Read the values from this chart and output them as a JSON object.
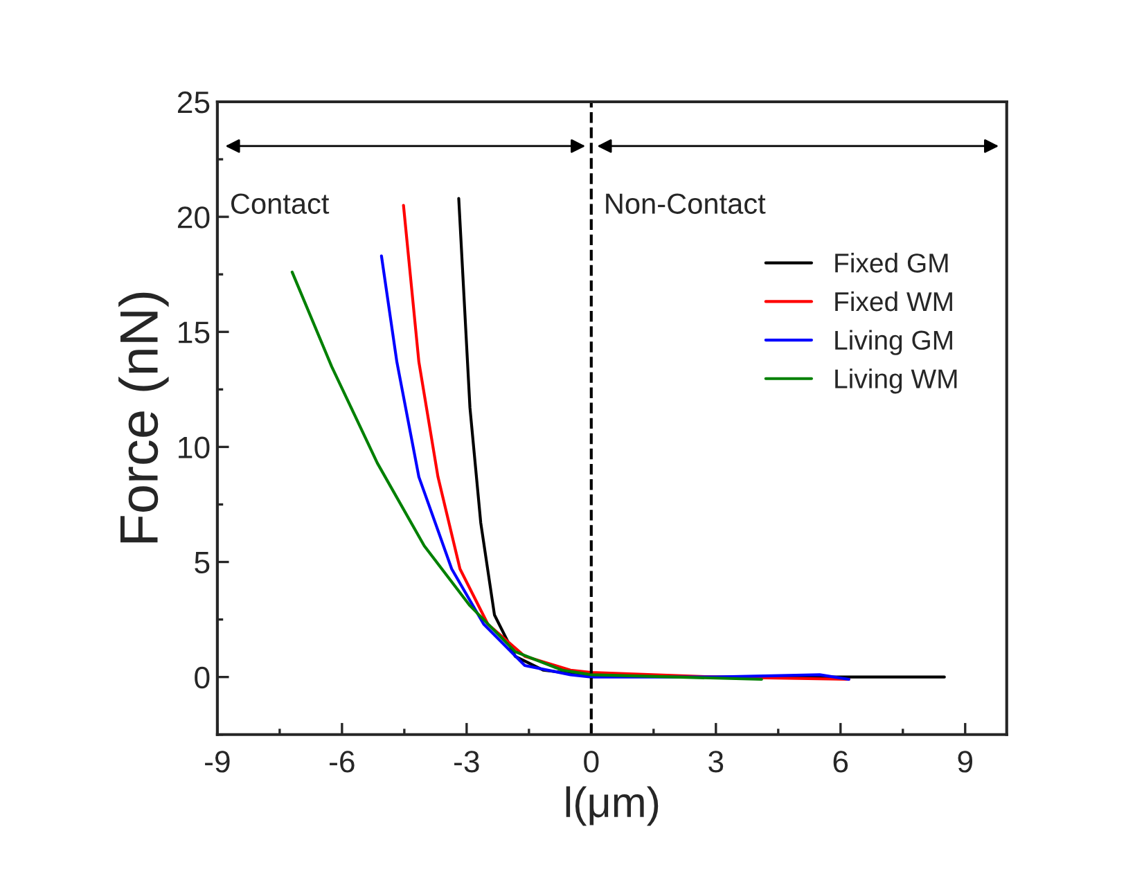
{
  "chart_data": {
    "type": "line",
    "xlabel": "l(μm)",
    "ylabel": "Force (nN)",
    "xlim": [
      -9,
      10
    ],
    "ylim": [
      -2.5,
      25
    ],
    "xticks": [
      -9,
      -6,
      -3,
      0,
      3,
      6,
      9
    ],
    "yticks": [
      0,
      5,
      10,
      15,
      20,
      25
    ],
    "grid": false,
    "legend": "right",
    "marker": "none",
    "line_style": "solid",
    "annotations": [
      "Contact",
      "Non-Contact"
    ],
    "ref_lines": [
      {
        "axis": "x",
        "value": 0,
        "line_style": "dashed",
        "color": "#000000"
      }
    ],
    "series": [
      {
        "name": "Fixed GM",
        "color": "#000000",
        "x": [
          -3.19,
          -2.92,
          -2.66,
          -2.33,
          -1.83,
          -1.16,
          0,
          3,
          6,
          8.5
        ],
        "values": [
          20.8,
          11.7,
          6.7,
          2.7,
          0.9,
          0.3,
          0.05,
          0,
          0,
          0
        ]
      },
      {
        "name": "Fixed WM",
        "color": "#ff0000",
        "x": [
          -4.52,
          -4.15,
          -3.69,
          -3.16,
          -2.49,
          -1.6,
          -0.5,
          0,
          3,
          6.2
        ],
        "values": [
          20.5,
          13.7,
          8.7,
          4.7,
          2.3,
          0.9,
          0.3,
          0.2,
          0,
          -0.1
        ]
      },
      {
        "name": "Living GM",
        "color": "#0000ff",
        "x": [
          -5.05,
          -4.68,
          -4.15,
          -3.36,
          -2.59,
          -1.6,
          -0.5,
          0,
          3,
          5.5,
          6.2
        ],
        "values": [
          18.3,
          13.7,
          8.7,
          4.7,
          2.3,
          0.5,
          0.1,
          0,
          0,
          0.1,
          -0.1
        ]
      },
      {
        "name": "Living WM",
        "color": "#008000",
        "x": [
          -7.2,
          -6.25,
          -5.15,
          -4.02,
          -2.92,
          -1.83,
          -0.7,
          0,
          2,
          4.1
        ],
        "values": [
          17.6,
          13.5,
          9.3,
          5.7,
          3.1,
          1.1,
          0.3,
          0.1,
          0,
          -0.1
        ]
      }
    ]
  }
}
